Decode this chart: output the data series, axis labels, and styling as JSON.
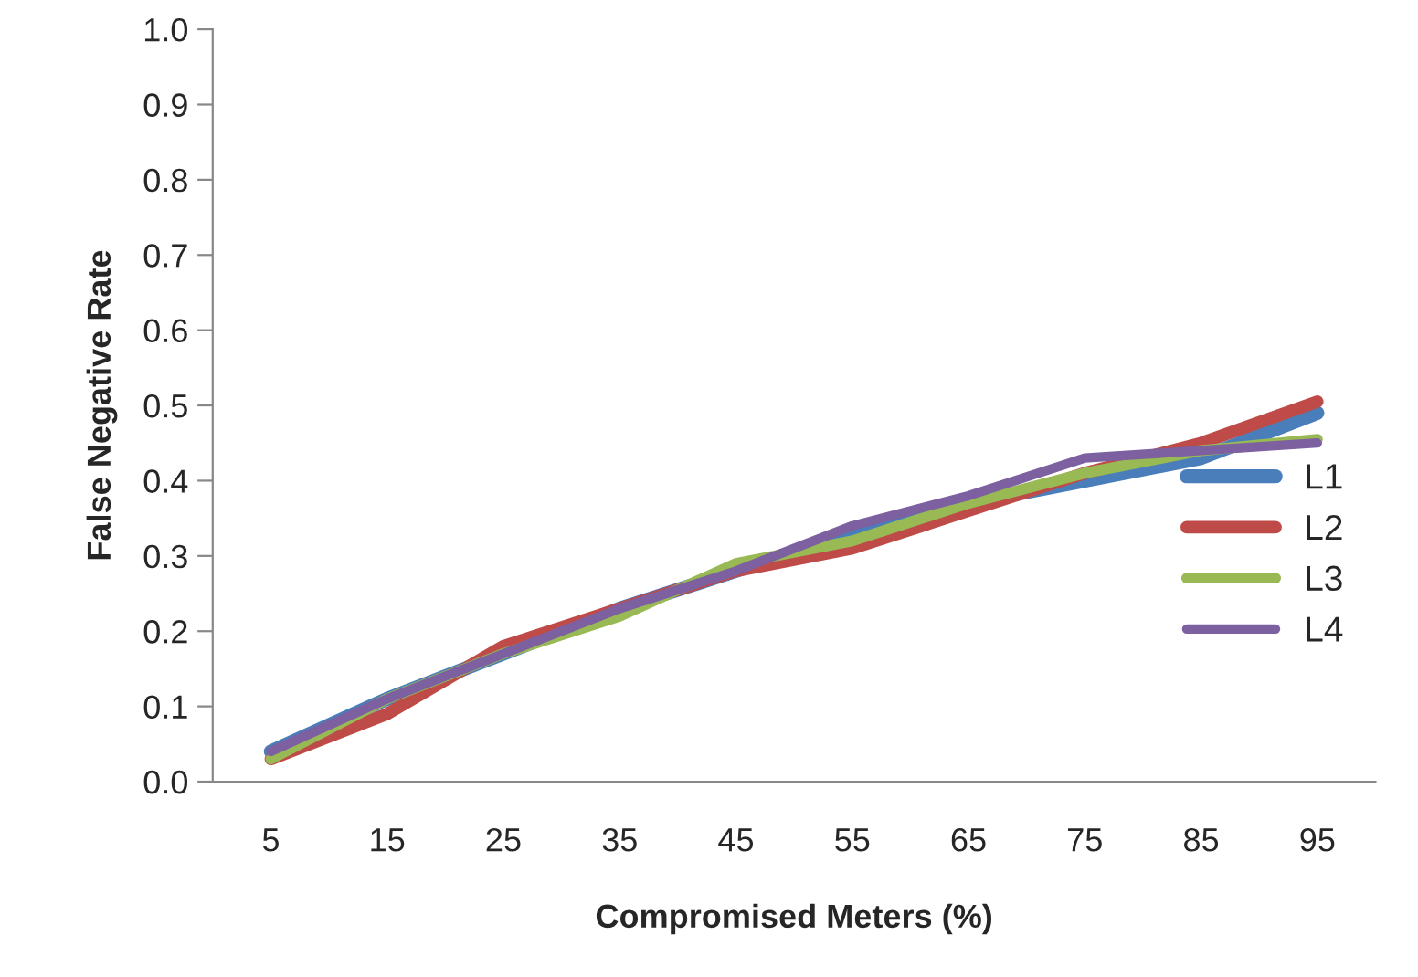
{
  "chart_data": {
    "type": "line",
    "xlabel": "Compromised Meters (%)",
    "ylabel": "False Negative Rate",
    "categories": [
      "5",
      "15",
      "25",
      "35",
      "45",
      "55",
      "65",
      "75",
      "85",
      "95"
    ],
    "series": [
      {
        "name": "L1",
        "color": "#4a7ebb",
        "values": [
          0.04,
          0.11,
          0.17,
          0.23,
          0.28,
          0.33,
          0.37,
          0.4,
          0.43,
          0.49
        ]
      },
      {
        "name": "L2",
        "color": "#be4b48",
        "values": [
          0.03,
          0.09,
          0.18,
          0.23,
          0.28,
          0.31,
          0.36,
          0.41,
          0.45,
          0.505
        ]
      },
      {
        "name": "L3",
        "color": "#98b954",
        "values": [
          0.03,
          0.11,
          0.17,
          0.22,
          0.29,
          0.32,
          0.37,
          0.41,
          0.44,
          0.455
        ]
      },
      {
        "name": "L4",
        "color": "#7d60a0",
        "values": [
          0.04,
          0.11,
          0.17,
          0.23,
          0.28,
          0.34,
          0.38,
          0.43,
          0.44,
          0.45
        ]
      }
    ],
    "ylim": [
      0,
      1
    ],
    "yticks": [
      {
        "value": 0,
        "label": "0.0"
      },
      {
        "value": 0.1,
        "label": "0.1"
      },
      {
        "value": 0.2,
        "label": "0.2"
      },
      {
        "value": 0.3,
        "label": "0.3"
      },
      {
        "value": 0.4,
        "label": "0.4"
      },
      {
        "value": 0.5,
        "label": "0.5"
      },
      {
        "value": 0.6,
        "label": "0.6"
      },
      {
        "value": 0.7,
        "label": "0.7"
      },
      {
        "value": 0.8,
        "label": "0.8"
      },
      {
        "value": 0.9,
        "label": "0.9"
      },
      {
        "value": 1,
        "label": "1.0"
      }
    ],
    "grid": false,
    "legend": "right",
    "marker": "none",
    "line_style": "solid"
  }
}
